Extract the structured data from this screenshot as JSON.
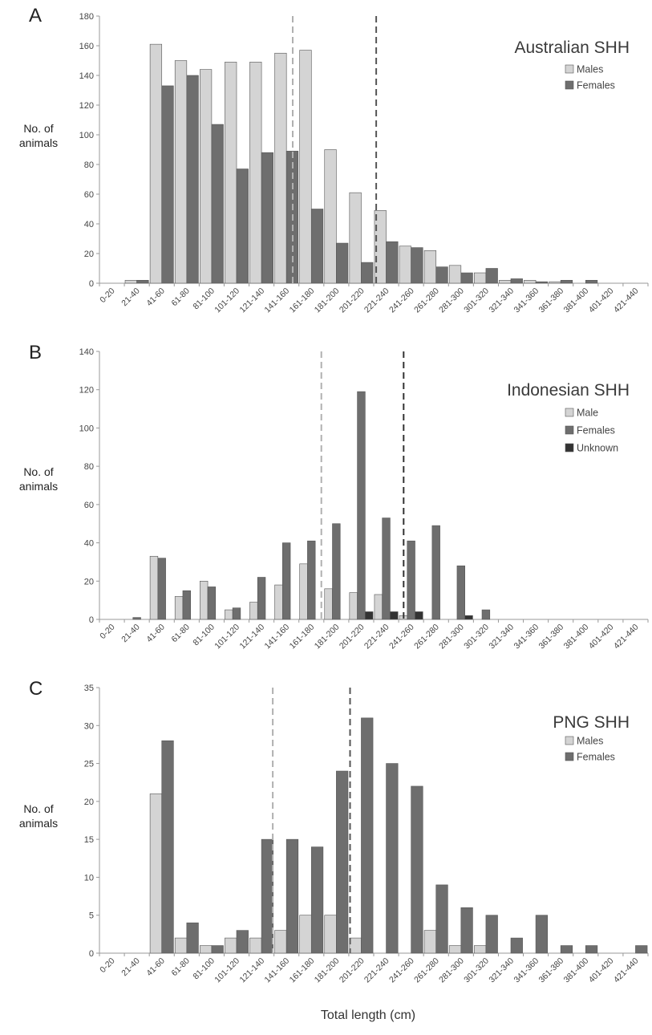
{
  "x_axis_label": "Total length (cm)",
  "colors": {
    "male": "#d4d4d4",
    "female": "#6e6e6e",
    "unknown": "#333333",
    "male_mean_line": "#b0b0b0",
    "female_mean_line": "#555555",
    "axis": "#999999"
  },
  "chart_data": [
    {
      "type": "bar",
      "panel": "A",
      "title": "Australian SHH",
      "ylabel": [
        "No. of",
        "animals"
      ],
      "xlabel": "",
      "ylim": [
        0,
        180
      ],
      "yticks": [
        0,
        20,
        40,
        60,
        80,
        100,
        120,
        140,
        160,
        180
      ],
      "categories": [
        "0-20",
        "21-40",
        "41-60",
        "61-80",
        "81-100",
        "101-120",
        "121-140",
        "141-160",
        "161-180",
        "181-200",
        "201-220",
        "221-240",
        "241-260",
        "261-280",
        "281-300",
        "301-320",
        "321-340",
        "341-360",
        "361-380",
        "381-400",
        "401-420",
        "421-440"
      ],
      "series": [
        {
          "name": "Males",
          "color": "#d4d4d4",
          "values": [
            0,
            2,
            161,
            150,
            144,
            149,
            149,
            155,
            157,
            90,
            61,
            49,
            25,
            22,
            12,
            7,
            2,
            2,
            1,
            0,
            0,
            0
          ]
        },
        {
          "name": "Females",
          "color": "#6e6e6e",
          "values": [
            0,
            2,
            133,
            140,
            107,
            77,
            88,
            89,
            50,
            27,
            14,
            28,
            24,
            11,
            7,
            10,
            3,
            1,
            2,
            2,
            0,
            0
          ]
        }
      ],
      "mean_lines": [
        {
          "series": "Males",
          "x": 155,
          "color": "#b0b0b0"
        },
        {
          "series": "Females",
          "x": 222,
          "color": "#555555"
        }
      ],
      "legend": "right",
      "grid": false
    },
    {
      "type": "bar",
      "panel": "B",
      "title": "Indonesian SHH",
      "ylabel": [
        "No. of",
        "animals"
      ],
      "xlabel": "",
      "ylim": [
        0,
        140
      ],
      "yticks": [
        0,
        20,
        40,
        60,
        80,
        100,
        120,
        140
      ],
      "categories": [
        "0-20",
        "21-40",
        "41-60",
        "61-80",
        "81-100",
        "101-120",
        "121-140",
        "141-160",
        "161-180",
        "181-200",
        "201-220",
        "221-240",
        "241-260",
        "261-280",
        "281-300",
        "301-320",
        "321-340",
        "341-360",
        "361-380",
        "381-400",
        "401-420",
        "421-440"
      ],
      "series": [
        {
          "name": "Male",
          "color": "#d4d4d4",
          "values": [
            0,
            0,
            33,
            12,
            20,
            5,
            9,
            18,
            29,
            16,
            14,
            13,
            2,
            0,
            0,
            0,
            0,
            0,
            0,
            0,
            0,
            0
          ]
        },
        {
          "name": "Females",
          "color": "#6e6e6e",
          "values": [
            0,
            1,
            32,
            15,
            17,
            6,
            22,
            40,
            41,
            50,
            119,
            53,
            41,
            49,
            28,
            5,
            0,
            0,
            0,
            0,
            0,
            0
          ]
        },
        {
          "name": "Unknown",
          "color": "#333333",
          "values": [
            0,
            0,
            0,
            0,
            0,
            0,
            0,
            0,
            0,
            0,
            4,
            4,
            4,
            0,
            2,
            0,
            0,
            0,
            0,
            0,
            0,
            0
          ]
        }
      ],
      "mean_lines": [
        {
          "series": "Male",
          "x": 178,
          "color": "#b0b0b0"
        },
        {
          "series": "Females",
          "x": 244,
          "color": "#333333"
        }
      ],
      "legend": "right",
      "grid": false
    },
    {
      "type": "bar",
      "panel": "C",
      "title": "PNG SHH",
      "ylabel": [
        "No. of",
        "animals"
      ],
      "xlabel": "Total length (cm)",
      "ylim": [
        0,
        35
      ],
      "yticks": [
        0,
        5,
        10,
        15,
        20,
        25,
        30,
        35
      ],
      "categories": [
        "0-20",
        "21-40",
        "41-60",
        "61-80",
        "81-100",
        "101-120",
        "121-140",
        "141-160",
        "161-180",
        "181-200",
        "201-220",
        "221-240",
        "241-260",
        "261-280",
        "281-300",
        "301-320",
        "321-340",
        "341-360",
        "361-380",
        "381-400",
        "401-420",
        "421-440"
      ],
      "series": [
        {
          "name": "Males",
          "color": "#d4d4d4",
          "values": [
            0,
            0,
            21,
            2,
            1,
            2,
            2,
            3,
            5,
            5,
            2,
            0,
            0,
            3,
            1,
            1,
            0,
            0,
            0,
            0,
            0,
            0
          ]
        },
        {
          "name": "Females",
          "color": "#6e6e6e",
          "values": [
            0,
            0,
            28,
            4,
            1,
            3,
            15,
            15,
            14,
            24,
            31,
            25,
            22,
            9,
            6,
            5,
            2,
            5,
            1,
            1,
            0,
            1
          ]
        }
      ],
      "mean_lines": [
        {
          "series": "Males",
          "x": 139,
          "color": "#b0b0b0"
        },
        {
          "series": "Females",
          "x": 201,
          "color": "#555555"
        }
      ],
      "legend": "right",
      "grid": false
    }
  ]
}
